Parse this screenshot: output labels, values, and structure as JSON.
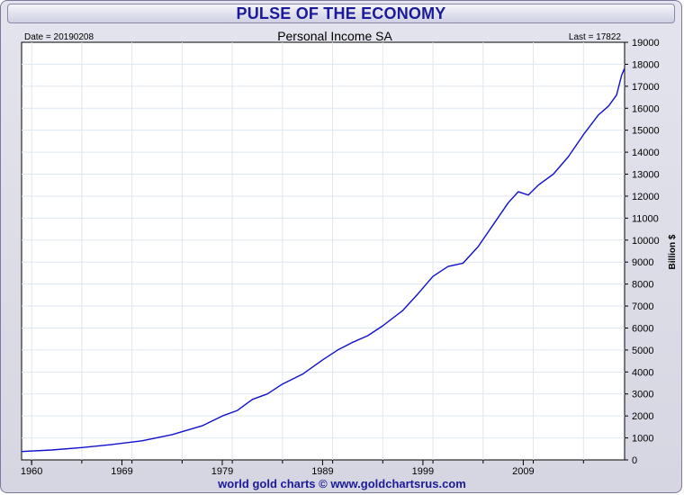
{
  "banner": {
    "title": "PULSE OF THE ECONOMY"
  },
  "chart_header": {
    "date_label": "Date = 20190208",
    "last_label": "Last = 17822"
  },
  "footer": {
    "credit": "world gold charts © www.goldchartsrus.com"
  },
  "colors": {
    "line": "#1010cc",
    "title": "#1a1a9a",
    "grid": "#dde6ef"
  },
  "chart_data": {
    "type": "line",
    "title": "Personal Income SA",
    "ylabel": "Billion $",
    "xlabel": "",
    "ylim": [
      0,
      19000
    ],
    "xlim": [
      1959,
      2019.1
    ],
    "y_ticks": [
      0,
      1000,
      2000,
      3000,
      4000,
      5000,
      6000,
      7000,
      8000,
      9000,
      10000,
      11000,
      12000,
      13000,
      14000,
      15000,
      16000,
      17000,
      18000,
      19000
    ],
    "x_tick_labels": [
      "1960",
      "1969",
      "1979",
      "1989",
      "1999",
      "2009"
    ],
    "x_tick_values": [
      1960,
      1969,
      1979,
      1989,
      1999,
      2009
    ],
    "grid": true,
    "legend": "none",
    "series": [
      {
        "x": [
          1959,
          1962,
          1965,
          1968,
          1971,
          1974,
          1977,
          1979,
          1980.5,
          1982,
          1983.5,
          1985,
          1987,
          1989,
          1990.5,
          1992,
          1993.5,
          1995,
          1997,
          1998.5,
          2000,
          2001.5,
          2003,
          2004.5,
          2006,
          2007.5,
          2008.5,
          2009.5,
          2010.5,
          2012,
          2013.5,
          2015,
          2016.5,
          2017.5,
          2018.3,
          2018.8,
          2019.1
        ],
        "y": [
          380,
          450,
          560,
          700,
          870,
          1150,
          1550,
          2000,
          2250,
          2750,
          3000,
          3450,
          3900,
          4550,
          5000,
          5350,
          5650,
          6100,
          6800,
          7550,
          8350,
          8800,
          8950,
          9700,
          10700,
          11700,
          12200,
          12050,
          12500,
          13000,
          13800,
          14800,
          15700,
          16100,
          16600,
          17500,
          17822
        ]
      }
    ]
  }
}
